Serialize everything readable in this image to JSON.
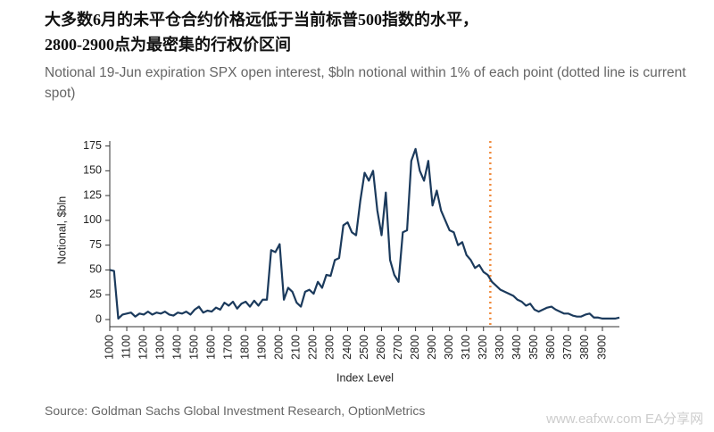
{
  "chart_data": {
    "type": "line",
    "title_lines": [
      "大多数6月的未平仓合约价格远低于当前标普500指数的水平，",
      "2800-2900点为最密集的行权价区间"
    ],
    "subtitle": "Notional 19-Jun expiration SPX open interest, $bln notional within 1% of each point (dotted line is current spot)",
    "x_label": "Index Level",
    "y_label": "Notional, $bln",
    "source": "Source: Goldman Sachs Global Investment Research, OptionMetrics",
    "watermark": "www.eafxw.com   EA分享网",
    "x": [
      1000,
      1025,
      1050,
      1075,
      1100,
      1125,
      1150,
      1175,
      1200,
      1225,
      1250,
      1275,
      1300,
      1325,
      1350,
      1375,
      1400,
      1425,
      1450,
      1475,
      1500,
      1525,
      1550,
      1575,
      1600,
      1625,
      1650,
      1675,
      1700,
      1725,
      1750,
      1775,
      1800,
      1825,
      1850,
      1875,
      1900,
      1925,
      1950,
      1975,
      2000,
      2025,
      2050,
      2075,
      2100,
      2125,
      2150,
      2175,
      2200,
      2225,
      2250,
      2275,
      2300,
      2325,
      2350,
      2375,
      2400,
      2425,
      2450,
      2475,
      2500,
      2525,
      2550,
      2575,
      2600,
      2625,
      2650,
      2675,
      2700,
      2725,
      2750,
      2775,
      2800,
      2825,
      2850,
      2875,
      2900,
      2925,
      2950,
      2975,
      3000,
      3025,
      3050,
      3075,
      3100,
      3125,
      3150,
      3175,
      3200,
      3225,
      3250,
      3275,
      3300,
      3325,
      3350,
      3375,
      3400,
      3425,
      3450,
      3475,
      3500,
      3525,
      3550,
      3575,
      3600,
      3625,
      3650,
      3675,
      3700,
      3725,
      3750,
      3775,
      3800,
      3825,
      3850,
      3875,
      3900,
      3925,
      3950,
      3975,
      4000
    ],
    "series": [
      {
        "name": "Notional",
        "color": "#1b3a5c",
        "values": [
          50,
          49,
          1,
          5,
          6,
          7,
          3,
          6,
          5,
          8,
          5,
          7,
          6,
          8,
          5,
          4,
          7,
          6,
          8,
          5,
          10,
          13,
          7,
          9,
          8,
          12,
          10,
          17,
          14,
          18,
          11,
          16,
          18,
          13,
          19,
          14,
          20,
          20,
          70,
          68,
          76,
          20,
          32,
          28,
          17,
          13,
          28,
          30,
          26,
          38,
          32,
          45,
          44,
          60,
          62,
          95,
          98,
          88,
          85,
          120,
          148,
          140,
          150,
          110,
          85,
          128,
          60,
          45,
          38,
          88,
          90,
          160,
          172,
          150,
          140,
          160,
          115,
          130,
          110,
          100,
          90,
          88,
          75,
          78,
          65,
          60,
          52,
          55,
          48,
          45,
          38,
          34,
          30,
          28,
          26,
          24,
          20,
          18,
          14,
          16,
          10,
          8,
          10,
          12,
          13,
          10,
          8,
          6,
          6,
          4,
          3,
          3,
          5,
          6,
          2,
          2,
          1,
          1,
          1,
          1,
          2
        ]
      }
    ],
    "reference_line": {
      "x": 3240,
      "color": "#f08a3c"
    },
    "xlim": [
      1000,
      4000
    ],
    "ylim": [
      0,
      180
    ],
    "xticks": [
      1000,
      1100,
      1200,
      1300,
      1400,
      1500,
      1600,
      1700,
      1800,
      1900,
      2000,
      2100,
      2200,
      2300,
      2400,
      2500,
      2600,
      2700,
      2800,
      2900,
      3000,
      3100,
      3200,
      3300,
      3400,
      3500,
      3600,
      3700,
      3800,
      3900
    ],
    "yticks": [
      0,
      25,
      50,
      75,
      100,
      125,
      150,
      175
    ],
    "grid": false
  }
}
